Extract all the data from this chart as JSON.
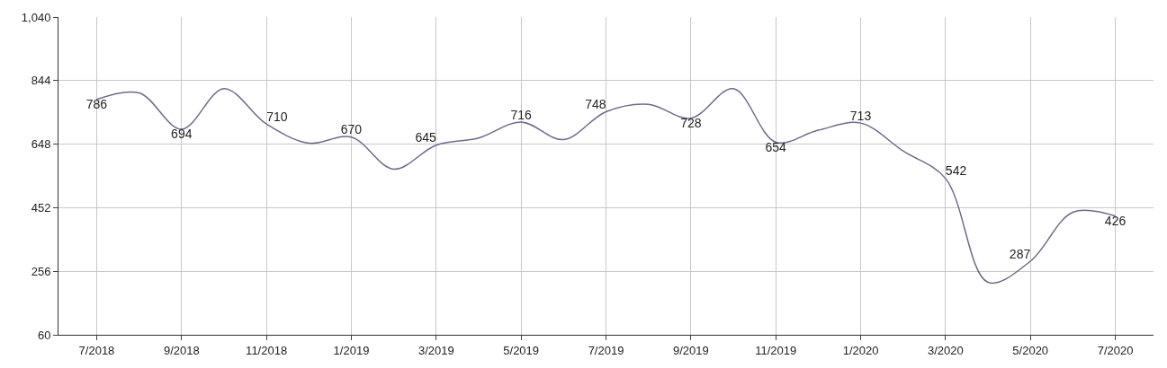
{
  "chart_data": {
    "type": "line",
    "categories": [
      "7/2018",
      null,
      "9/2018",
      null,
      "11/2018",
      null,
      "1/2019",
      null,
      "3/2019",
      null,
      "5/2019",
      null,
      "7/2019",
      null,
      "9/2019",
      null,
      "11/2019",
      null,
      "1/2020",
      null,
      "3/2020",
      null,
      "5/2020",
      null,
      "7/2020"
    ],
    "series": [
      {
        "color": "#6f6a8a",
        "values": [
          786,
          806,
          694,
          819,
          710,
          651,
          670,
          571,
          645,
          667,
          716,
          662,
          748,
          771,
          728,
          819,
          654,
          691,
          713,
          627,
          542,
          222,
          287,
          438,
          426
        ],
        "value_labels": [
          "786",
          null,
          "694",
          null,
          "710",
          null,
          "670",
          null,
          "645",
          null,
          "716",
          null,
          "748",
          null,
          "728",
          null,
          "654",
          null,
          "713",
          null,
          "542",
          null,
          "287",
          null,
          "426"
        ]
      }
    ],
    "ylim": [
      60,
      1040
    ],
    "yticks": [
      60,
      256,
      452,
      648,
      844,
      {
        "value": 1040,
        "label": "1,040"
      }
    ],
    "grid": true,
    "marker": "none",
    "line_style": "solid"
  }
}
